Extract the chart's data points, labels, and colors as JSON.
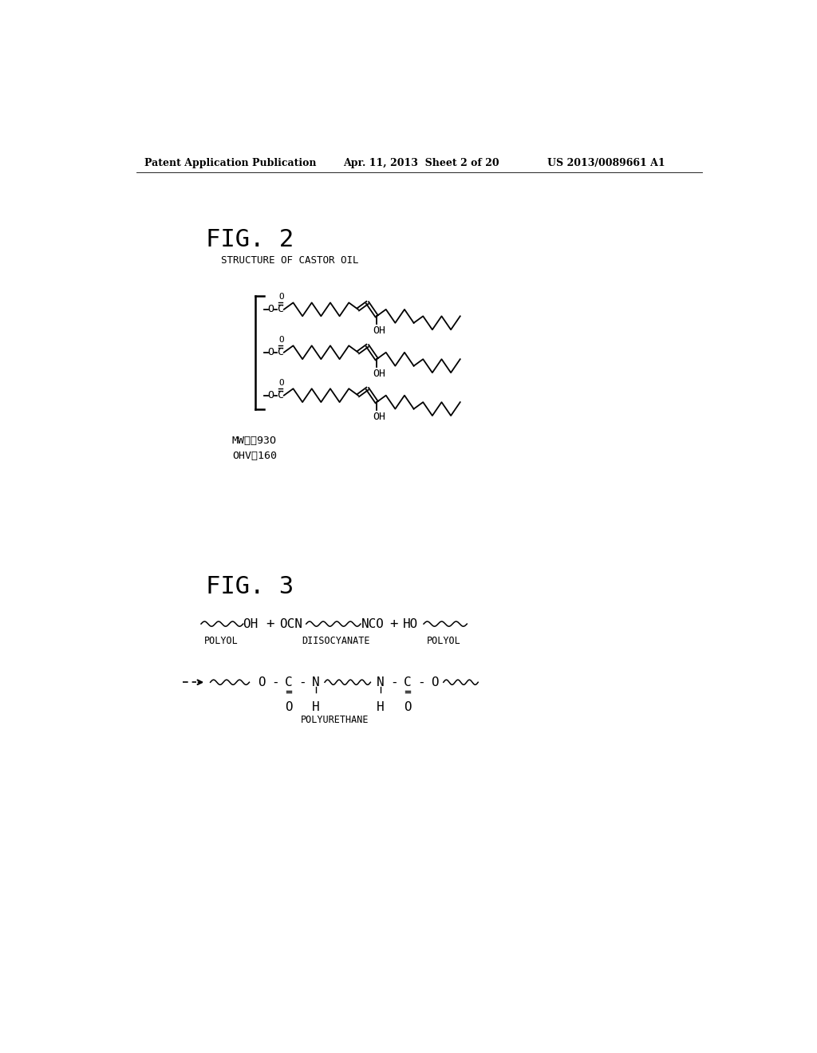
{
  "header_left": "Patent Application Publication",
  "header_center": "Apr. 11, 2013  Sheet 2 of 20",
  "header_right": "US 2013/0089661 A1",
  "fig2_label": "FIG. 2",
  "fig2_subtitle": "STRUCTURE OF CASTOR OIL",
  "fig2_mw": "MW：組93O",
  "fig2_ohv": "OHV：160",
  "fig3_label": "FIG. 3",
  "bg_color": "#ffffff",
  "text_color": "#000000"
}
